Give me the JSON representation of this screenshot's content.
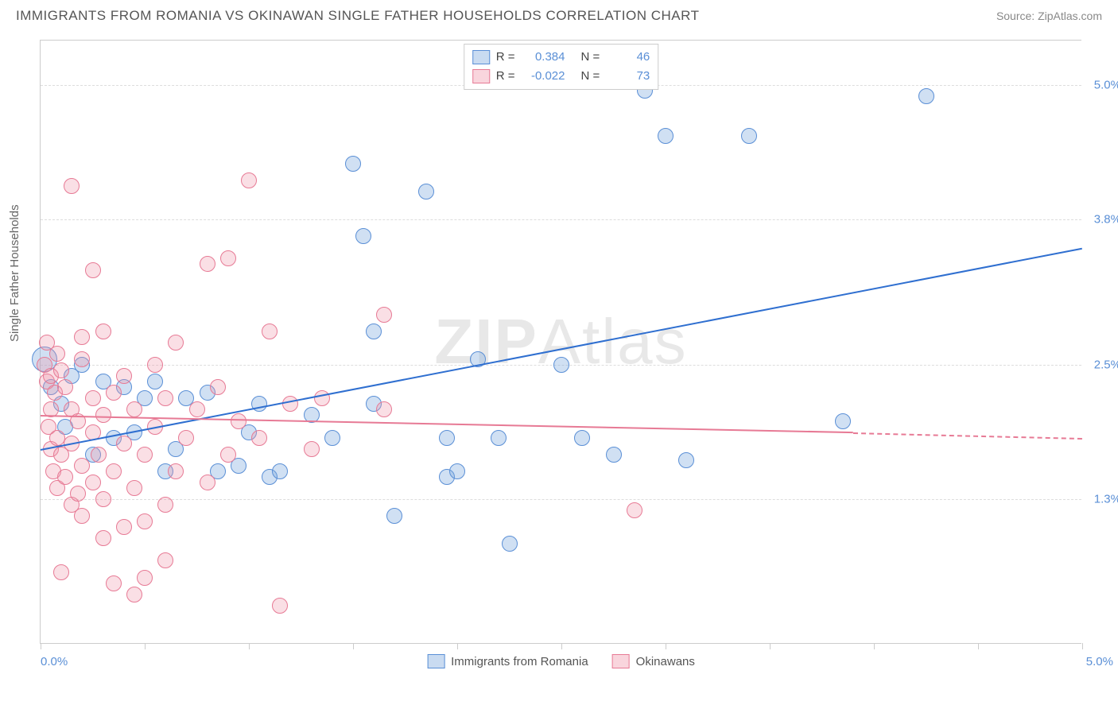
{
  "title": "IMMIGRANTS FROM ROMANIA VS OKINAWAN SINGLE FATHER HOUSEHOLDS CORRELATION CHART",
  "source": "Source: ZipAtlas.com",
  "watermark_a": "ZIP",
  "watermark_b": "Atlas",
  "ylabel": "Single Father Households",
  "chart": {
    "type": "scatter",
    "xlim": [
      0,
      5.0
    ],
    "ylim": [
      0,
      5.4
    ],
    "x_min_label": "0.0%",
    "x_max_label": "5.0%",
    "y_grid": [
      {
        "v": 1.3,
        "label": "1.3%"
      },
      {
        "v": 2.5,
        "label": "2.5%"
      },
      {
        "v": 3.8,
        "label": "3.8%"
      },
      {
        "v": 5.0,
        "label": "5.0%"
      }
    ],
    "x_ticks": [
      0.0,
      0.5,
      1.0,
      1.5,
      2.0,
      2.5,
      3.0,
      3.5,
      4.0,
      4.5,
      5.0
    ],
    "colors": {
      "blue_fill": "rgba(120,165,220,0.35)",
      "blue_stroke": "#5a8fd6",
      "pink_fill": "rgba(240,150,170,0.3)",
      "pink_stroke": "#e77a95",
      "blue_line": "#2f6fd0",
      "pink_line": "#e77a95",
      "grid": "#dddddd",
      "axis": "#cccccc",
      "text_axis": "#5a8fd6"
    },
    "marker_radius": 10,
    "line_width": 2,
    "series": [
      {
        "key": "romania",
        "label": "Immigrants from Romania",
        "color": "blue",
        "R": "0.384",
        "N": "46",
        "trend": {
          "x1": 0.0,
          "y1": 1.75,
          "x2": 5.0,
          "y2": 3.55,
          "dash_from": 5.0
        },
        "points": [
          {
            "x": 0.02,
            "y": 2.55,
            "r": 16
          },
          {
            "x": 0.05,
            "y": 2.3
          },
          {
            "x": 0.1,
            "y": 2.15
          },
          {
            "x": 0.12,
            "y": 1.95
          },
          {
            "x": 0.15,
            "y": 2.4
          },
          {
            "x": 0.2,
            "y": 2.5
          },
          {
            "x": 0.3,
            "y": 2.35
          },
          {
            "x": 0.35,
            "y": 1.85
          },
          {
            "x": 0.4,
            "y": 2.3
          },
          {
            "x": 0.5,
            "y": 2.2
          },
          {
            "x": 0.55,
            "y": 2.35
          },
          {
            "x": 0.6,
            "y": 1.55
          },
          {
            "x": 0.7,
            "y": 2.2
          },
          {
            "x": 0.8,
            "y": 2.25
          },
          {
            "x": 0.85,
            "y": 1.55
          },
          {
            "x": 0.95,
            "y": 1.6
          },
          {
            "x": 1.05,
            "y": 2.15
          },
          {
            "x": 1.1,
            "y": 1.5
          },
          {
            "x": 1.15,
            "y": 1.55
          },
          {
            "x": 1.3,
            "y": 2.05
          },
          {
            "x": 1.5,
            "y": 4.3
          },
          {
            "x": 1.55,
            "y": 3.65
          },
          {
            "x": 1.6,
            "y": 2.8
          },
          {
            "x": 1.6,
            "y": 2.15
          },
          {
            "x": 1.7,
            "y": 1.15
          },
          {
            "x": 1.85,
            "y": 4.05
          },
          {
            "x": 1.95,
            "y": 1.5
          },
          {
            "x": 1.95,
            "y": 1.85
          },
          {
            "x": 2.0,
            "y": 1.55
          },
          {
            "x": 2.1,
            "y": 2.55
          },
          {
            "x": 2.2,
            "y": 1.85
          },
          {
            "x": 2.25,
            "y": 0.9
          },
          {
            "x": 2.5,
            "y": 2.5
          },
          {
            "x": 2.6,
            "y": 1.85
          },
          {
            "x": 2.75,
            "y": 1.7
          },
          {
            "x": 2.9,
            "y": 4.95
          },
          {
            "x": 3.0,
            "y": 4.55
          },
          {
            "x": 3.1,
            "y": 1.65
          },
          {
            "x": 3.4,
            "y": 4.55
          },
          {
            "x": 3.85,
            "y": 2.0
          },
          {
            "x": 4.25,
            "y": 4.9
          },
          {
            "x": 0.25,
            "y": 1.7
          },
          {
            "x": 0.45,
            "y": 1.9
          },
          {
            "x": 0.65,
            "y": 1.75
          },
          {
            "x": 1.0,
            "y": 1.9
          },
          {
            "x": 1.4,
            "y": 1.85
          }
        ]
      },
      {
        "key": "okinawans",
        "label": "Okinawans",
        "color": "pink",
        "R": "-0.022",
        "N": "73",
        "trend": {
          "x1": 0.0,
          "y1": 2.05,
          "x2": 3.9,
          "y2": 1.9,
          "dash_from": 3.9,
          "dash_x2": 5.0,
          "dash_y2": 1.85
        },
        "points": [
          {
            "x": 0.02,
            "y": 2.5
          },
          {
            "x": 0.03,
            "y": 2.35
          },
          {
            "x": 0.03,
            "y": 2.7
          },
          {
            "x": 0.04,
            "y": 1.95
          },
          {
            "x": 0.05,
            "y": 1.75
          },
          {
            "x": 0.05,
            "y": 2.1
          },
          {
            "x": 0.05,
            "y": 2.4
          },
          {
            "x": 0.06,
            "y": 1.55
          },
          {
            "x": 0.07,
            "y": 2.25
          },
          {
            "x": 0.08,
            "y": 1.4
          },
          {
            "x": 0.08,
            "y": 1.85
          },
          {
            "x": 0.08,
            "y": 2.6
          },
          {
            "x": 0.1,
            "y": 0.65
          },
          {
            "x": 0.1,
            "y": 1.7
          },
          {
            "x": 0.1,
            "y": 2.45
          },
          {
            "x": 0.12,
            "y": 1.5
          },
          {
            "x": 0.12,
            "y": 2.3
          },
          {
            "x": 0.15,
            "y": 1.25
          },
          {
            "x": 0.15,
            "y": 1.8
          },
          {
            "x": 0.15,
            "y": 2.1
          },
          {
            "x": 0.15,
            "y": 4.1
          },
          {
            "x": 0.18,
            "y": 1.35
          },
          {
            "x": 0.18,
            "y": 2.0
          },
          {
            "x": 0.2,
            "y": 1.15
          },
          {
            "x": 0.2,
            "y": 1.6
          },
          {
            "x": 0.2,
            "y": 2.55
          },
          {
            "x": 0.2,
            "y": 2.75
          },
          {
            "x": 0.25,
            "y": 1.45
          },
          {
            "x": 0.25,
            "y": 1.9
          },
          {
            "x": 0.25,
            "y": 2.2
          },
          {
            "x": 0.25,
            "y": 3.35
          },
          {
            "x": 0.28,
            "y": 1.7
          },
          {
            "x": 0.3,
            "y": 0.95
          },
          {
            "x": 0.3,
            "y": 1.3
          },
          {
            "x": 0.3,
            "y": 2.05
          },
          {
            "x": 0.3,
            "y": 2.8
          },
          {
            "x": 0.35,
            "y": 1.55
          },
          {
            "x": 0.35,
            "y": 2.25
          },
          {
            "x": 0.4,
            "y": 1.05
          },
          {
            "x": 0.4,
            "y": 1.8
          },
          {
            "x": 0.4,
            "y": 2.4
          },
          {
            "x": 0.45,
            "y": 0.45
          },
          {
            "x": 0.45,
            "y": 1.4
          },
          {
            "x": 0.45,
            "y": 2.1
          },
          {
            "x": 0.5,
            "y": 0.6
          },
          {
            "x": 0.5,
            "y": 1.1
          },
          {
            "x": 0.5,
            "y": 1.7
          },
          {
            "x": 0.55,
            "y": 1.95
          },
          {
            "x": 0.55,
            "y": 2.5
          },
          {
            "x": 0.6,
            "y": 0.75
          },
          {
            "x": 0.6,
            "y": 1.25
          },
          {
            "x": 0.6,
            "y": 2.2
          },
          {
            "x": 0.65,
            "y": 1.55
          },
          {
            "x": 0.65,
            "y": 2.7
          },
          {
            "x": 0.7,
            "y": 1.85
          },
          {
            "x": 0.75,
            "y": 2.1
          },
          {
            "x": 0.8,
            "y": 1.45
          },
          {
            "x": 0.8,
            "y": 3.4
          },
          {
            "x": 0.85,
            "y": 2.3
          },
          {
            "x": 0.9,
            "y": 1.7
          },
          {
            "x": 0.9,
            "y": 3.45
          },
          {
            "x": 0.95,
            "y": 2.0
          },
          {
            "x": 1.0,
            "y": 4.15
          },
          {
            "x": 1.05,
            "y": 1.85
          },
          {
            "x": 1.1,
            "y": 2.8
          },
          {
            "x": 1.15,
            "y": 0.35
          },
          {
            "x": 1.2,
            "y": 2.15
          },
          {
            "x": 1.3,
            "y": 1.75
          },
          {
            "x": 1.35,
            "y": 2.2
          },
          {
            "x": 1.65,
            "y": 2.95
          },
          {
            "x": 1.65,
            "y": 2.1
          },
          {
            "x": 2.85,
            "y": 1.2
          },
          {
            "x": 0.35,
            "y": 0.55
          }
        ]
      }
    ]
  },
  "legend_bottom": [
    {
      "label": "Immigrants from Romania",
      "color": "blue"
    },
    {
      "label": "Okinawans",
      "color": "pink"
    }
  ]
}
